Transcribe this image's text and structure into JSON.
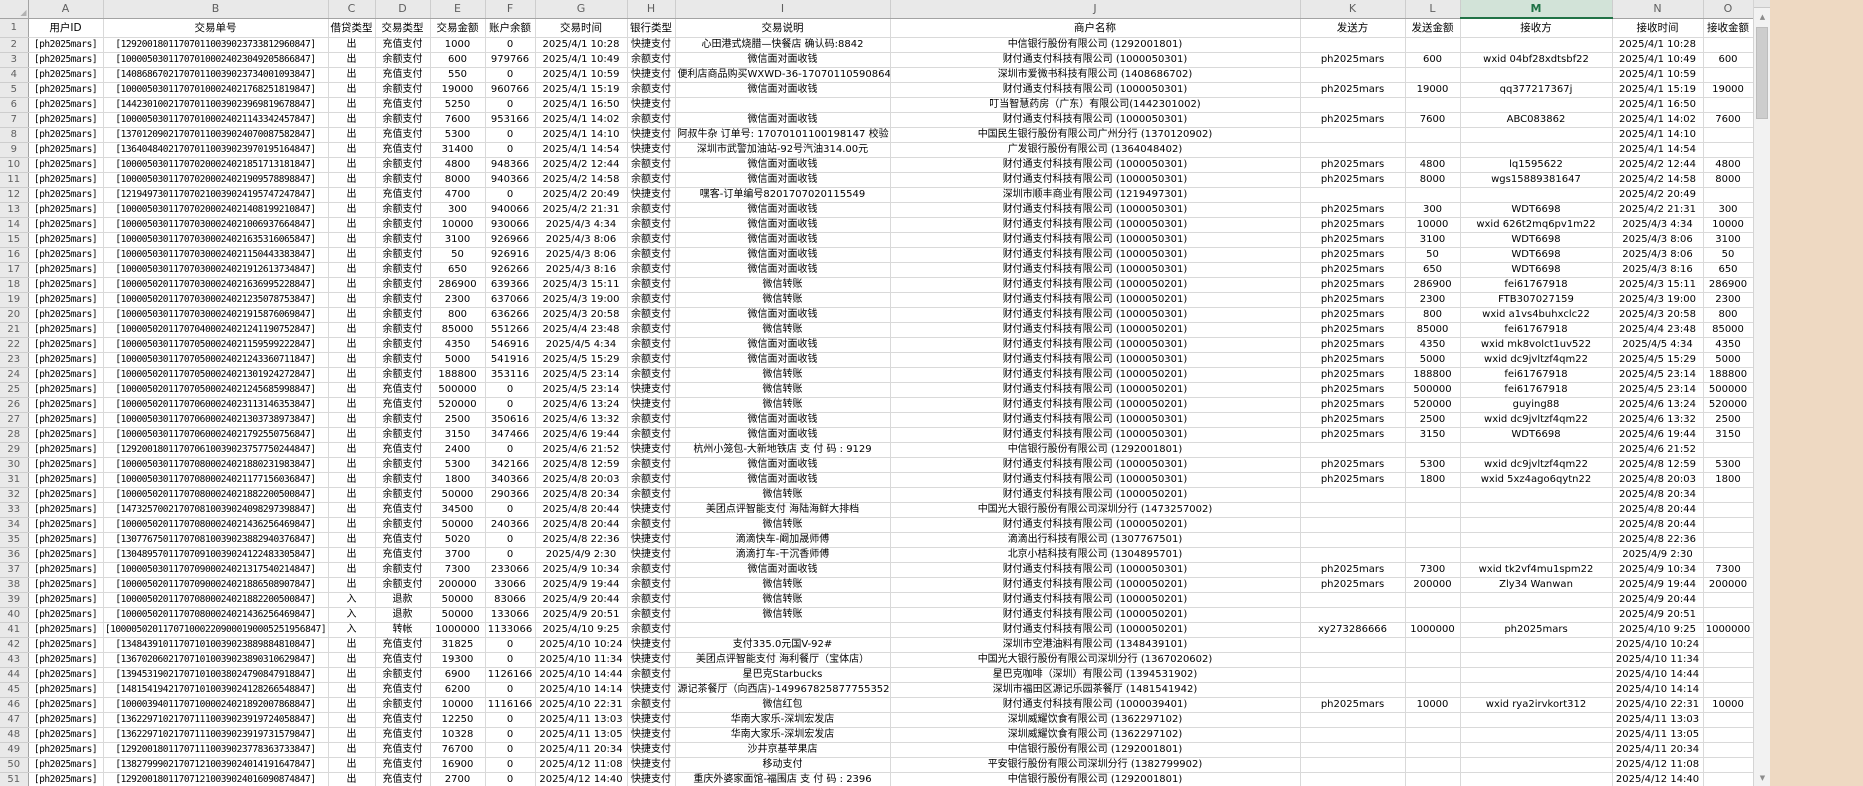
{
  "icons": {
    "select_all_triangle": "◢",
    "scroll_up": "▲",
    "scroll_down": "▼"
  },
  "colors": {
    "active_column_green": "#217346",
    "header_gray": "#e9e9e9",
    "gridline": "#d9d9d9",
    "background_strip": "#eed9c2"
  },
  "active_column": "M",
  "column_letters": [
    "A",
    "B",
    "C",
    "D",
    "E",
    "F",
    "G",
    "H",
    "I",
    "J",
    "K",
    "L",
    "M",
    "N",
    "O"
  ],
  "row_numbers": [
    "1",
    "2",
    "3",
    "4",
    "5",
    "6",
    "7",
    "8",
    "9",
    "10",
    "11",
    "12",
    "13",
    "14",
    "15",
    "16",
    "17",
    "18",
    "19",
    "20",
    "21",
    "22",
    "23",
    "24",
    "25",
    "26",
    "27",
    "28",
    "29",
    "30",
    "31",
    "32",
    "33",
    "34",
    "35",
    "36",
    "37",
    "38",
    "39",
    "40",
    "41",
    "42",
    "43",
    "44",
    "45",
    "46",
    "47",
    "48",
    "49",
    "50",
    "51"
  ],
  "headers": [
    "用户ID",
    "交易单号",
    "借贷类型",
    "交易类型",
    "交易金额",
    "账户余额",
    "交易时间",
    "银行类型",
    "交易说明",
    "商户名称",
    "发送方",
    "发送金额",
    "接收方",
    "接收时间",
    "接收金额"
  ],
  "rows": [
    [
      "[ph2025mars]",
      "[129200180117070110039023733812960847]",
      "出",
      "充值支付",
      "1000",
      "0",
      "2025/4/1 10:28",
      "快捷支付",
      "心田港式烧腊—快餐店 确认码:8842",
      "中信银行股份有限公司 (1292001801)",
      "",
      "",
      "",
      "2025/4/1 10:28",
      ""
    ],
    [
      "[ph2025mars]",
      "[100005030117070100024023049205866847]",
      "出",
      "余额支付",
      "600",
      "979766",
      "2025/4/1 10:49",
      "余额支付",
      "微信面对面收钱",
      "财付通支付科技有限公司 (1000050301)",
      "ph2025mars",
      "600",
      "wxid 04bf28xdtsbf22",
      "2025/4/1 10:49",
      "600"
    ],
    [
      "[ph2025mars]",
      "[140868670217070110039023734001093847]",
      "出",
      "充值支付",
      "550",
      "0",
      "2025/4/1 10:59",
      "快捷支付",
      "便利店商品购买WXWD-36-17070110590864",
      "深圳市爱微书科技有限公司 (1408686702)",
      "",
      "",
      "",
      "2025/4/1 10:59",
      ""
    ],
    [
      "[ph2025mars]",
      "[100005030117070100024021768251819847]",
      "出",
      "余额支付",
      "19000",
      "960766",
      "2025/4/1 15:19",
      "余额支付",
      "微信面对面收钱",
      "财付通支付科技有限公司 (1000050301)",
      "ph2025mars",
      "19000",
      "qq377217367j",
      "2025/4/1 15:19",
      "19000"
    ],
    [
      "[ph2025mars]",
      "[144230100217070110039023969819678847]",
      "出",
      "充值支付",
      "5250",
      "0",
      "2025/4/1 16:50",
      "快捷支付",
      "",
      "叮当智慧药房（广东）有限公司(1442301002)",
      "",
      "",
      "",
      "2025/4/1 16:50",
      ""
    ],
    [
      "[ph2025mars]",
      "[100005030117070100024021143342457847]",
      "出",
      "余额支付",
      "7600",
      "953166",
      "2025/4/1 14:02",
      "余额支付",
      "微信面对面收钱",
      "财付通支付科技有限公司 (1000050301)",
      "ph2025mars",
      "7600",
      "ABC083862",
      "2025/4/1 14:02",
      "7600"
    ],
    [
      "[ph2025mars]",
      "[137012090217070110039024070087582847]",
      "出",
      "充值支付",
      "5300",
      "0",
      "2025/4/1 14:10",
      "快捷支付",
      "阿叔牛杂 订单号: 17070101100198147 校验",
      "中国民生银行股份有限公司广州分行 (1370120902)",
      "",
      "",
      "",
      "2025/4/1 14:10",
      ""
    ],
    [
      "[ph2025mars]",
      "[136404840217070110039023970195164847]",
      "出",
      "充值支付",
      "31400",
      "0",
      "2025/4/1 14:54",
      "快捷支付",
      "深圳市武警加油站-92号汽油314.00元",
      "广发银行股份有限公司 (1364048402)",
      "",
      "",
      "",
      "2025/4/1 14:54",
      ""
    ],
    [
      "[ph2025mars]",
      "[100005030117070200024021851713181847]",
      "出",
      "余额支付",
      "4800",
      "948366",
      "2025/4/2 12:44",
      "余额支付",
      "微信面对面收钱",
      "财付通支付科技有限公司 (1000050301)",
      "ph2025mars",
      "4800",
      "lq1595622",
      "2025/4/2 12:44",
      "4800"
    ],
    [
      "[ph2025mars]",
      "[100005030117070200024021909578898847]",
      "出",
      "余额支付",
      "8000",
      "940366",
      "2025/4/2 14:58",
      "余额支付",
      "微信面对面收钱",
      "财付通支付科技有限公司 (1000050301)",
      "ph2025mars",
      "8000",
      "wgs15889381647",
      "2025/4/2 14:58",
      "8000"
    ],
    [
      "[ph2025mars]",
      "[121949730117070210039024195747247847]",
      "出",
      "充值支付",
      "4700",
      "0",
      "2025/4/2 20:49",
      "快捷支付",
      "嘿客-订单编号8201707020115549",
      "深圳市顺丰商业有限公司 (1219497301)",
      "",
      "",
      "",
      "2025/4/2 20:49",
      ""
    ],
    [
      "[ph2025mars]",
      "[100005030117070200024021408199210847]",
      "出",
      "余额支付",
      "300",
      "940066",
      "2025/4/2 21:31",
      "余额支付",
      "微信面对面收钱",
      "财付通支付科技有限公司 (1000050301)",
      "ph2025mars",
      "300",
      "WDT6698",
      "2025/4/2 21:31",
      "300"
    ],
    [
      "[ph2025mars]",
      "[100005030117070300024021006937664847]",
      "出",
      "余额支付",
      "10000",
      "930066",
      "2025/4/3 4:34",
      "余额支付",
      "微信面对面收钱",
      "财付通支付科技有限公司 (1000050301)",
      "ph2025mars",
      "10000",
      "wxid 626t2mq6pv1m22",
      "2025/4/3 4:34",
      "10000"
    ],
    [
      "[ph2025mars]",
      "[100005030117070300024021635316065847]",
      "出",
      "余额支付",
      "3100",
      "926966",
      "2025/4/3 8:06",
      "余额支付",
      "微信面对面收钱",
      "财付通支付科技有限公司 (1000050301)",
      "ph2025mars",
      "3100",
      "WDT6698",
      "2025/4/3 8:06",
      "3100"
    ],
    [
      "[ph2025mars]",
      "[100005030117070300024021150443383847]",
      "出",
      "余额支付",
      "50",
      "926916",
      "2025/4/3 8:06",
      "余额支付",
      "微信面对面收钱",
      "财付通支付科技有限公司 (1000050301)",
      "ph2025mars",
      "50",
      "WDT6698",
      "2025/4/3 8:06",
      "50"
    ],
    [
      "[ph2025mars]",
      "[100005030117070300024021912613734847]",
      "出",
      "余额支付",
      "650",
      "926266",
      "2025/4/3 8:16",
      "余额支付",
      "微信面对面收钱",
      "财付通支付科技有限公司 (1000050301)",
      "ph2025mars",
      "650",
      "WDT6698",
      "2025/4/3 8:16",
      "650"
    ],
    [
      "[ph2025mars]",
      "[100005020117070300024021636995228847]",
      "出",
      "余额支付",
      "286900",
      "639366",
      "2025/4/3 15:11",
      "余额支付",
      "微信转账",
      "财付通支付科技有限公司 (1000050201)",
      "ph2025mars",
      "286900",
      "fei61767918",
      "2025/4/3 15:11",
      "286900"
    ],
    [
      "[ph2025mars]",
      "[100005020117070300024021235078753847]",
      "出",
      "余额支付",
      "2300",
      "637066",
      "2025/4/3 19:00",
      "余额支付",
      "微信转账",
      "财付通支付科技有限公司 (1000050201)",
      "ph2025mars",
      "2300",
      "FTB307027159",
      "2025/4/3 19:00",
      "2300"
    ],
    [
      "[ph2025mars]",
      "[100005030117070300024021915876069847]",
      "出",
      "余额支付",
      "800",
      "636266",
      "2025/4/3 20:58",
      "余额支付",
      "微信面对面收钱",
      "财付通支付科技有限公司 (1000050301)",
      "ph2025mars",
      "800",
      "wxid a1vs4buhxclc22",
      "2025/4/3 20:58",
      "800"
    ],
    [
      "[ph2025mars]",
      "[100005020117070400024021241190752847]",
      "出",
      "余额支付",
      "85000",
      "551266",
      "2025/4/4 23:48",
      "余额支付",
      "微信转账",
      "财付通支付科技有限公司 (1000050201)",
      "ph2025mars",
      "85000",
      "fei61767918",
      "2025/4/4 23:48",
      "85000"
    ],
    [
      "[ph2025mars]",
      "[100005030117070500024021159599222847]",
      "出",
      "余额支付",
      "4350",
      "546916",
      "2025/4/5 4:34",
      "余额支付",
      "微信面对面收钱",
      "财付通支付科技有限公司 (1000050301)",
      "ph2025mars",
      "4350",
      "wxid mk8volct1uv522",
      "2025/4/5 4:34",
      "4350"
    ],
    [
      "[ph2025mars]",
      "[100005030117070500024021243360711847]",
      "出",
      "余额支付",
      "5000",
      "541916",
      "2025/4/5 15:29",
      "余额支付",
      "微信面对面收钱",
      "财付通支付科技有限公司 (1000050301)",
      "ph2025mars",
      "5000",
      "wxid dc9jvltzf4qm22",
      "2025/4/5 15:29",
      "5000"
    ],
    [
      "[ph2025mars]",
      "[100005020117070500024021301924272847]",
      "出",
      "余额支付",
      "188800",
      "353116",
      "2025/4/5 23:14",
      "余额支付",
      "微信转账",
      "财付通支付科技有限公司 (1000050201)",
      "ph2025mars",
      "188800",
      "fei61767918",
      "2025/4/5 23:14",
      "188800"
    ],
    [
      "[ph2025mars]",
      "[100005020117070500024021245685998847]",
      "出",
      "充值支付",
      "500000",
      "0",
      "2025/4/5 23:14",
      "快捷支付",
      "微信转账",
      "财付通支付科技有限公司 (1000050201)",
      "ph2025mars",
      "500000",
      "fei61767918",
      "2025/4/5 23:14",
      "500000"
    ],
    [
      "[ph2025mars]",
      "[100005020117070600024023113146353847]",
      "出",
      "充值支付",
      "520000",
      "0",
      "2025/4/6 13:24",
      "快捷支付",
      "微信转账",
      "财付通支付科技有限公司 (1000050201)",
      "ph2025mars",
      "520000",
      "guying88",
      "2025/4/6 13:24",
      "520000"
    ],
    [
      "[ph2025mars]",
      "[100005030117070600024021303738973847]",
      "出",
      "余额支付",
      "2500",
      "350616",
      "2025/4/6 13:32",
      "余额支付",
      "微信面对面收钱",
      "财付通支付科技有限公司 (1000050301)",
      "ph2025mars",
      "2500",
      "wxid dc9jvltzf4qm22",
      "2025/4/6 13:32",
      "2500"
    ],
    [
      "[ph2025mars]",
      "[100005030117070600024021792550756847]",
      "出",
      "余额支付",
      "3150",
      "347466",
      "2025/4/6 19:44",
      "余额支付",
      "微信面对面收钱",
      "财付通支付科技有限公司 (1000050301)",
      "ph2025mars",
      "3150",
      "WDT6698",
      "2025/4/6 19:44",
      "3150"
    ],
    [
      "[ph2025mars]",
      "[129200180117070610039023757750244847]",
      "出",
      "充值支付",
      "2400",
      "0",
      "2025/4/6 21:52",
      "快捷支付",
      "杭州小笼包-大新地铁店 支 付 码 : 9129",
      "中信银行股份有限公司 (1292001801)",
      "",
      "",
      "",
      "2025/4/6 21:52",
      ""
    ],
    [
      "[ph2025mars]",
      "[100005030117070800024021880231983847]",
      "出",
      "余额支付",
      "5300",
      "342166",
      "2025/4/8 12:59",
      "余额支付",
      "微信面对面收钱",
      "财付通支付科技有限公司 (1000050301)",
      "ph2025mars",
      "5300",
      "wxid dc9jvltzf4qm22",
      "2025/4/8 12:59",
      "5300"
    ],
    [
      "[ph2025mars]",
      "[100005030117070800024021177156036847]",
      "出",
      "余额支付",
      "1800",
      "340366",
      "2025/4/8 20:03",
      "余额支付",
      "微信面对面收钱",
      "财付通支付科技有限公司 (1000050301)",
      "ph2025mars",
      "1800",
      "wxid 5xz4ago6qytn22",
      "2025/4/8 20:03",
      "1800"
    ],
    [
      "[ph2025mars]",
      "[100005020117070800024021882200500847]",
      "出",
      "余额支付",
      "50000",
      "290366",
      "2025/4/8 20:34",
      "余额支付",
      "微信转账",
      "财付通支付科技有限公司 (1000050201)",
      "",
      "",
      "",
      "2025/4/8 20:34",
      ""
    ],
    [
      "[ph2025mars]",
      "[147325700217070810039024098297398847]",
      "出",
      "充值支付",
      "34500",
      "0",
      "2025/4/8 20:44",
      "快捷支付",
      "美团点评智能支付 海陆海鲜大排档",
      "中国光大银行股份有限公司深圳分行 (1473257002)",
      "",
      "",
      "",
      "2025/4/8 20:44",
      ""
    ],
    [
      "[ph2025mars]",
      "[100005020117070800024021436256469847]",
      "出",
      "余额支付",
      "50000",
      "240366",
      "2025/4/8 20:44",
      "余额支付",
      "微信转账",
      "财付通支付科技有限公司 (1000050201)",
      "",
      "",
      "",
      "2025/4/8 20:44",
      ""
    ],
    [
      "[ph2025mars]",
      "[130776750117070810039023882940376847]",
      "出",
      "充值支付",
      "5020",
      "0",
      "2025/4/8 22:36",
      "快捷支付",
      "滴滴快车-阚加晟师傅",
      "滴滴出行科技有限公司 (1307767501)",
      "",
      "",
      "",
      "2025/4/8 22:36",
      ""
    ],
    [
      "[ph2025mars]",
      "[130489570117070910039024122483305847]",
      "出",
      "充值支付",
      "3700",
      "0",
      "2025/4/9 2:30",
      "快捷支付",
      "滴滴打车-干沉香师傅",
      "北京小桔科技有限公司 (1304895701)",
      "",
      "",
      "",
      "2025/4/9 2:30",
      ""
    ],
    [
      "[ph2025mars]",
      "[100005030117070900024021317540214847]",
      "出",
      "余额支付",
      "7300",
      "233066",
      "2025/4/9 10:34",
      "余额支付",
      "微信面对面收钱",
      "财付通支付科技有限公司 (1000050301)",
      "ph2025mars",
      "7300",
      "wxid tk2vf4mu1spm22",
      "2025/4/9 10:34",
      "7300"
    ],
    [
      "[ph2025mars]",
      "[100005020117070900024021886508907847]",
      "出",
      "余额支付",
      "200000",
      "33066",
      "2025/4/9 19:44",
      "余额支付",
      "微信转账",
      "财付通支付科技有限公司 (1000050201)",
      "ph2025mars",
      "200000",
      "Zly34 Wanwan",
      "2025/4/9 19:44",
      "200000"
    ],
    [
      "[ph2025mars]",
      "[100005020117070800024021882200500847]",
      "入",
      "退款",
      "50000",
      "83066",
      "2025/4/9 20:44",
      "余额支付",
      "微信转账",
      "财付通支付科技有限公司 (1000050201)",
      "",
      "",
      "",
      "2025/4/9 20:44",
      ""
    ],
    [
      "[ph2025mars]",
      "[100005020117070800024021436256469847]",
      "入",
      "退款",
      "50000",
      "133066",
      "2025/4/9 20:51",
      "余额支付",
      "微信转账",
      "财付通支付科技有限公司 (1000050201)",
      "",
      "",
      "",
      "2025/4/9 20:51",
      ""
    ],
    [
      "[ph2025mars]",
      "[1000050201170710002209000190005251956847]",
      "入",
      "转帐",
      "1000000",
      "1133066",
      "2025/4/10 9:25",
      "余额支付",
      "",
      "财付通支付科技有限公司 (1000050201)",
      "xy273286666",
      "1000000",
      "ph2025mars",
      "2025/4/10 9:25",
      "1000000"
    ],
    [
      "[ph2025mars]",
      "[134843910117071010039023889884810847]",
      "出",
      "充值支付",
      "31825",
      "0",
      "2025/4/10 10:24",
      "快捷支付",
      "支付335.0元国V-92#",
      "深圳市空港油料有限公司 (1348439101)",
      "",
      "",
      "",
      "2025/4/10 10:24",
      ""
    ],
    [
      "[ph2025mars]",
      "[136702060217071010039023890310629847]",
      "出",
      "充值支付",
      "19300",
      "0",
      "2025/4/10 11:34",
      "快捷支付",
      "美团点评智能支付 海利餐厅（宝体店）",
      "中国光大银行股份有限公司深圳分行 (1367020602)",
      "",
      "",
      "",
      "2025/4/10 11:34",
      ""
    ],
    [
      "[ph2025mars]",
      "[139453190217071010038024790847918847]",
      "出",
      "余额支付",
      "6900",
      "1126166",
      "2025/4/10 14:44",
      "余额支付",
      "星巴克Starbucks",
      "星巴克咖啡（深圳）有限公司 (1394531902)",
      "",
      "",
      "",
      "2025/4/10 14:44",
      ""
    ],
    [
      "[ph2025mars]",
      "[148154194217071010039024128266548847]",
      "出",
      "充值支付",
      "6200",
      "0",
      "2025/4/10 14:14",
      "快捷支付",
      "源记茶餐厅（向西店)-149967825877755352",
      "深圳市福田区源记乐园茶餐厅 (1481541942)",
      "",
      "",
      "",
      "2025/4/10 14:14",
      ""
    ],
    [
      "[ph2025mars]",
      "[100003940117071000024021892007868847]",
      "出",
      "余额支付",
      "10000",
      "1116166",
      "2025/4/10 22:31",
      "余额支付",
      "微信红包",
      "财付通支付科技有限公司 (1000039401)",
      "ph2025mars",
      "10000",
      "wxid rya2irvkort312",
      "2025/4/10 22:31",
      "10000"
    ],
    [
      "[ph2025mars]",
      "[136229710217071110039023919724058847]",
      "出",
      "充值支付",
      "12250",
      "0",
      "2025/4/11 13:03",
      "快捷支付",
      "华南大家乐-深圳宏发店",
      "深圳威耀饮食有限公司 (1362297102)",
      "",
      "",
      "",
      "2025/4/11 13:03",
      ""
    ],
    [
      "[ph2025mars]",
      "[136229710217071110039023919731579847]",
      "出",
      "充值支付",
      "10328",
      "0",
      "2025/4/11 13:05",
      "快捷支付",
      "华南大家乐-深圳宏发店",
      "深圳威耀饮食有限公司 (1362297102)",
      "",
      "",
      "",
      "2025/4/11 13:05",
      ""
    ],
    [
      "[ph2025mars]",
      "[129200180117071110039023778363733847]",
      "出",
      "充值支付",
      "76700",
      "0",
      "2025/4/11 20:34",
      "快捷支付",
      "沙井京基苹果店",
      "中信银行股份有限公司 (1292001801)",
      "",
      "",
      "",
      "2025/4/11 20:34",
      ""
    ],
    [
      "[ph2025mars]",
      "[138279990217071210039024014191647847]",
      "出",
      "充值支付",
      "16900",
      "0",
      "2025/4/12 11:08",
      "快捷支付",
      "移动支付",
      "平安银行股份有限公司深圳分行 (1382799902)",
      "",
      "",
      "",
      "2025/4/12 11:08",
      ""
    ],
    [
      "[ph2025mars]",
      "[129200180117071210039024016090874847]",
      "出",
      "充值支付",
      "2700",
      "0",
      "2025/4/12 14:40",
      "快捷支付",
      "重庆外婆家面馆-福围店 支 付 码 : 2396",
      "中信银行股份有限公司 (1292001801)",
      "",
      "",
      "",
      "2025/4/12 14:40",
      ""
    ]
  ]
}
